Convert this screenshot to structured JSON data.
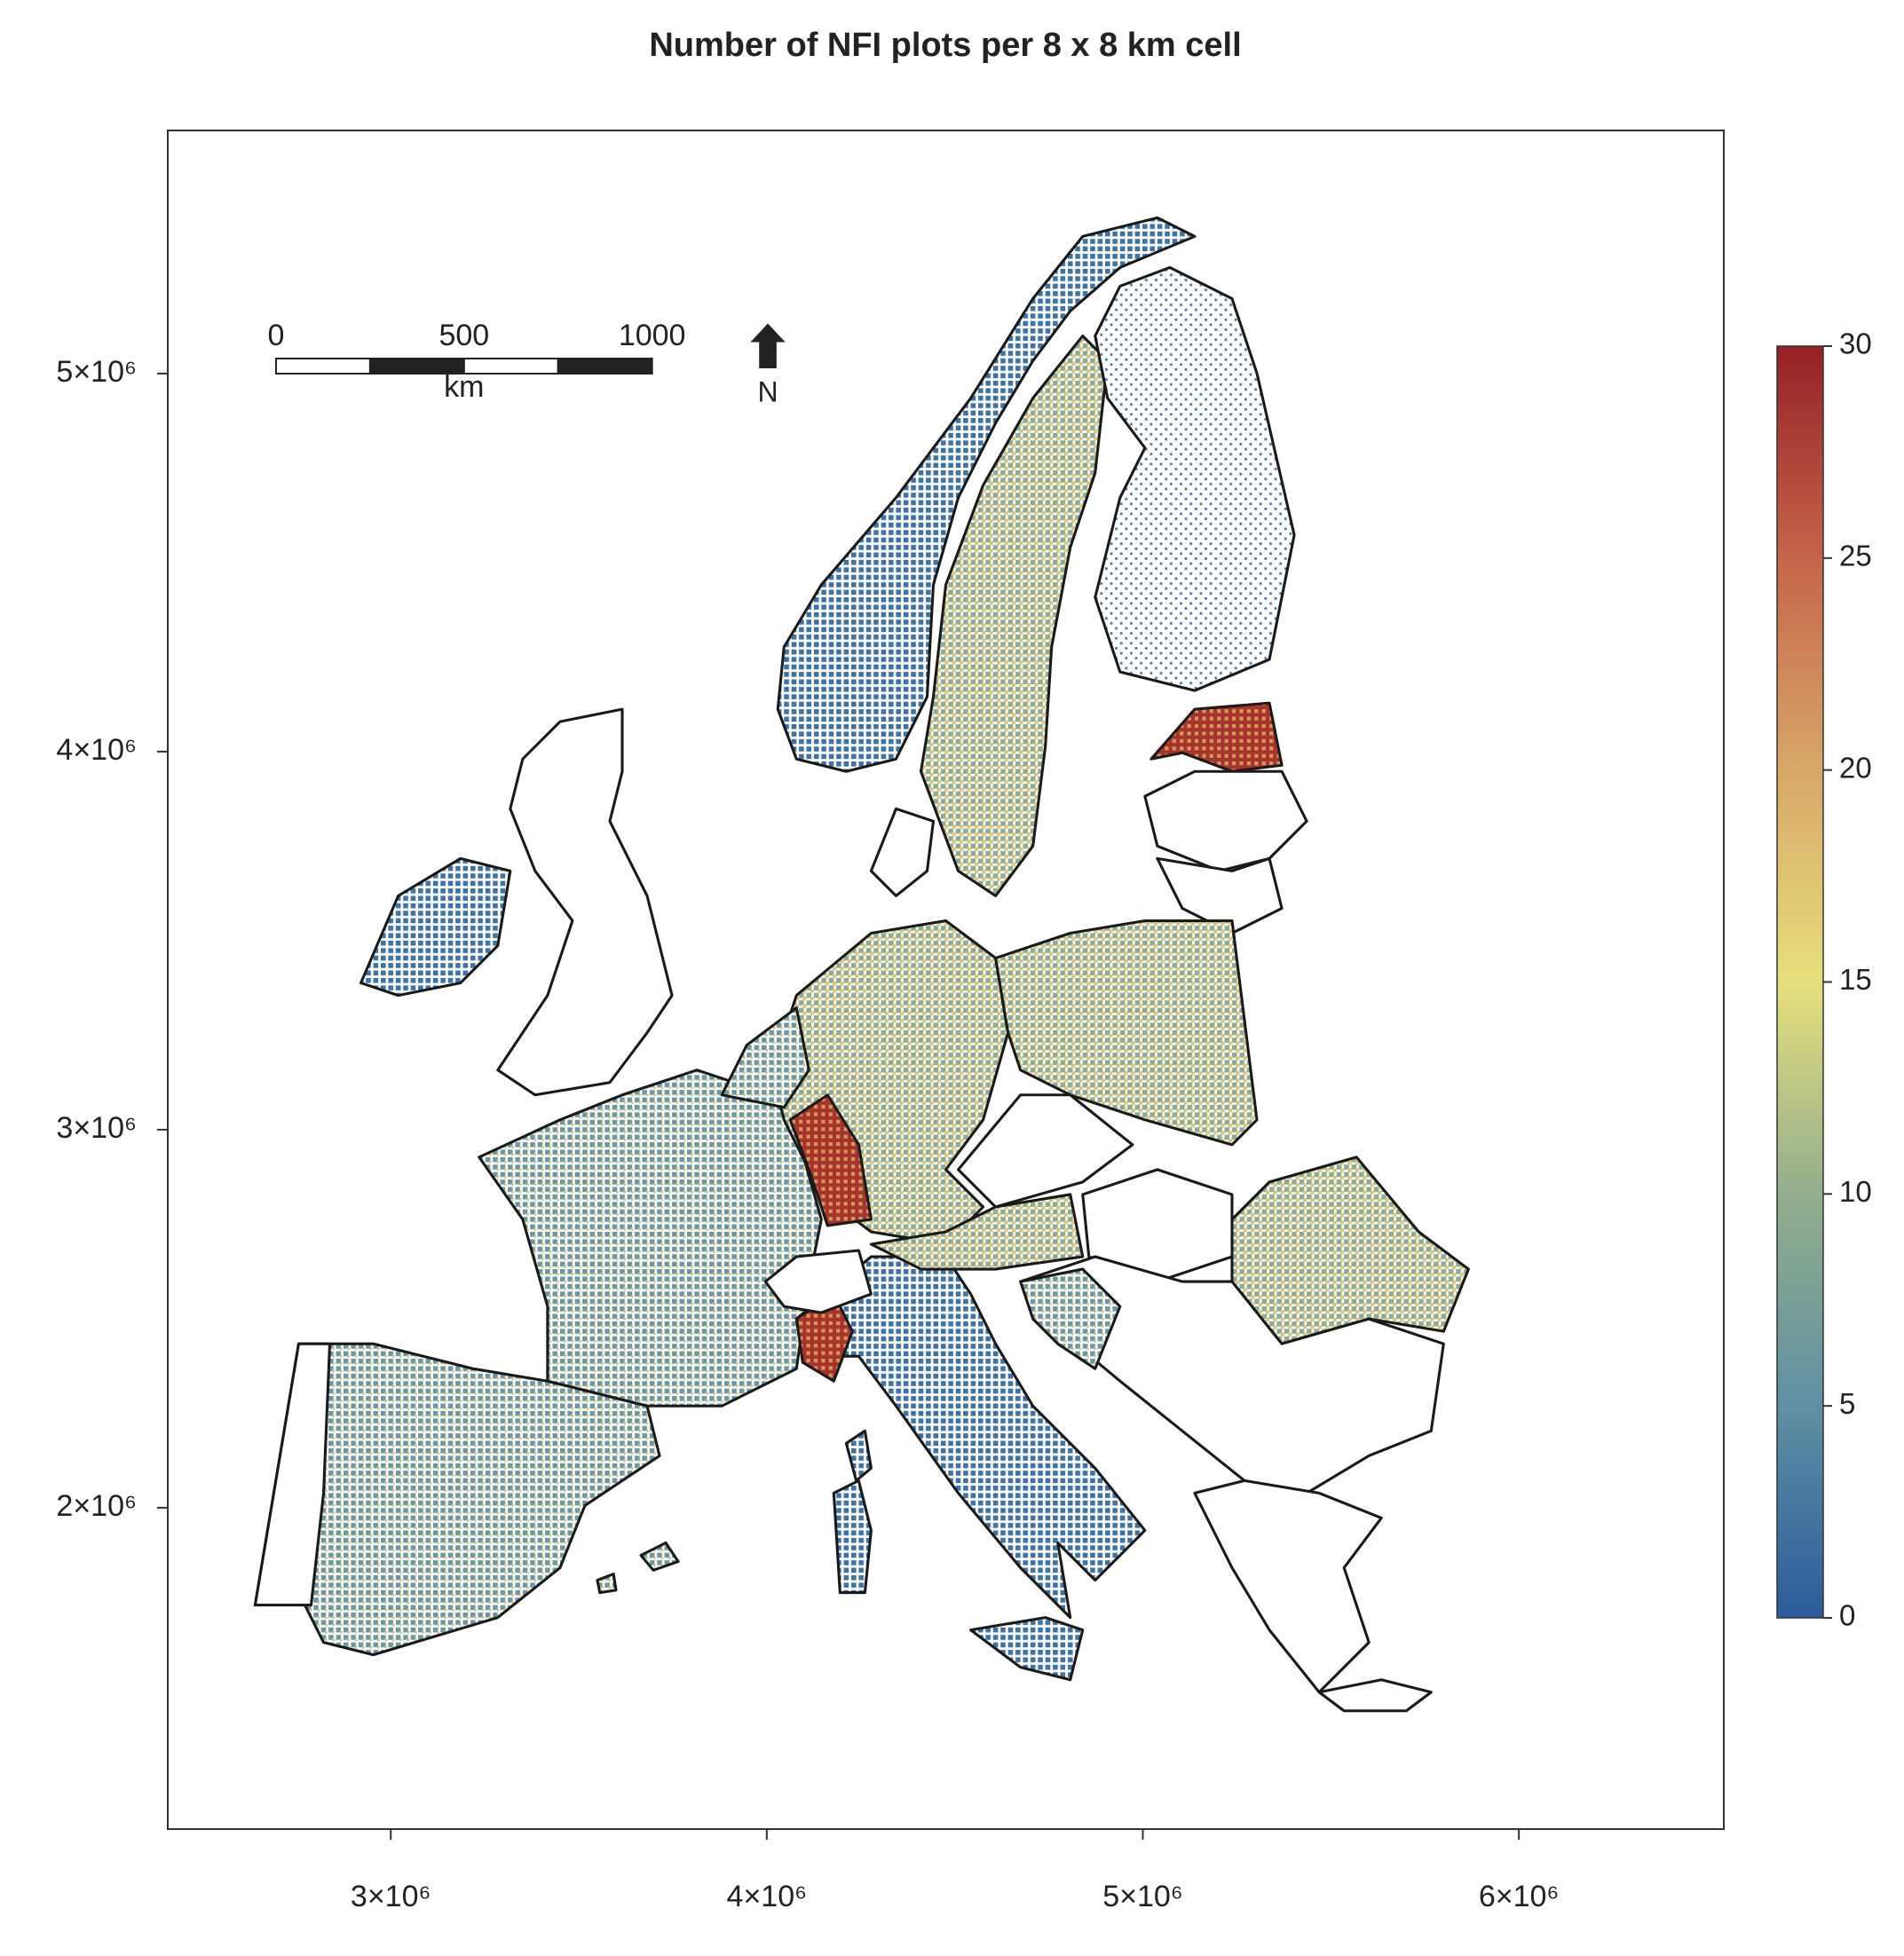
{
  "chart_data": {
    "type": "map",
    "title": "Number of NFI plots per 8 x 8 km cell",
    "xlim": [
      2407000,
      6545000
    ],
    "ylim": [
      1150000,
      5643000
    ],
    "xticks": [
      {
        "value": 3000000,
        "label": "3×10⁶"
      },
      {
        "value": 4000000,
        "label": "4×10⁶"
      },
      {
        "value": 5000000,
        "label": "5×10⁶"
      },
      {
        "value": 6000000,
        "label": "6×10⁶"
      }
    ],
    "yticks": [
      {
        "value": 2000000,
        "label": "2×10⁶"
      },
      {
        "value": 3000000,
        "label": "3×10⁶"
      },
      {
        "value": 4000000,
        "label": "4×10⁶"
      },
      {
        "value": 5000000,
        "label": "5×10⁶"
      }
    ],
    "colorbar": {
      "lim": [
        0,
        30
      ],
      "ticks": [
        0,
        5,
        10,
        15,
        20,
        25,
        30
      ],
      "colors": [
        "#2b5c9c",
        "#5f90a3",
        "#93ae8c",
        "#e6df7c",
        "#d8a768",
        "#c5654a",
        "#962025"
      ]
    },
    "scale_bar": {
      "ticks": [
        0,
        500,
        1000
      ],
      "unit": "km"
    },
    "north_label": "N"
  }
}
